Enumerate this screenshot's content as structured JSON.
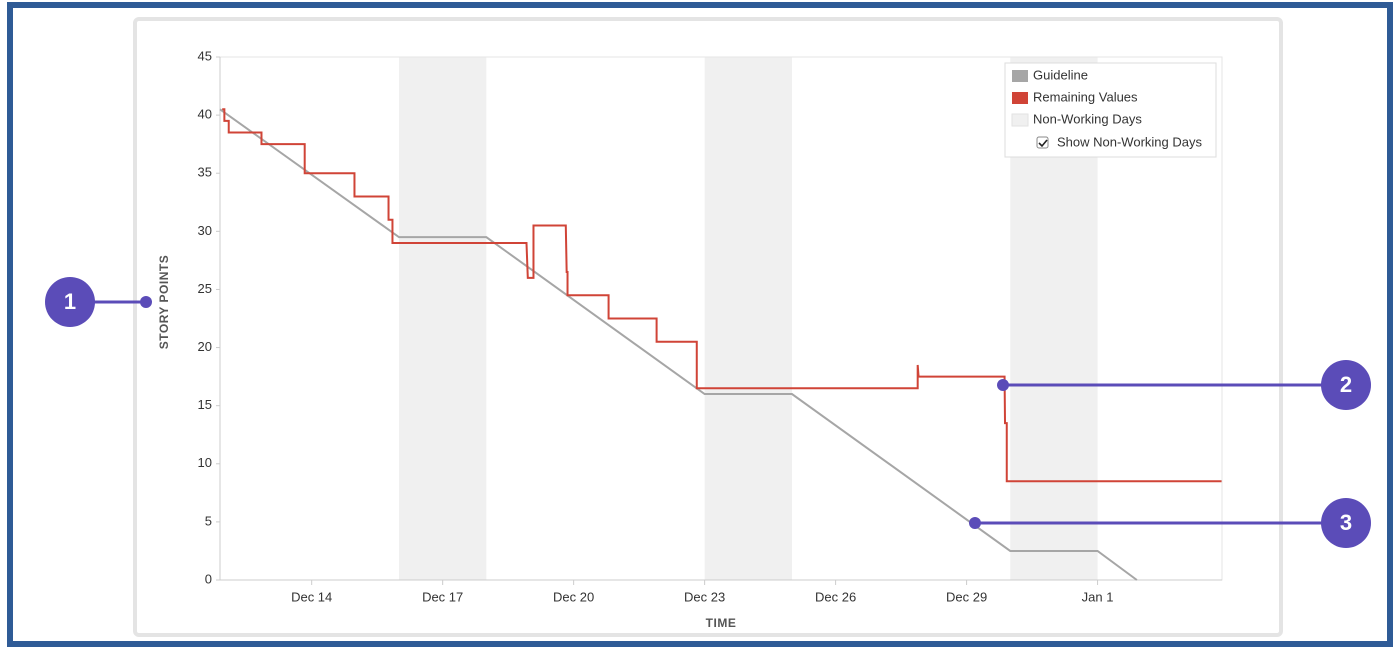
{
  "chart_data": {
    "type": "line",
    "xlabel": "TIME",
    "ylabel": "STORY POINTS",
    "xlim": [
      11.9,
      34.85
    ],
    "ylim": [
      0,
      45
    ],
    "xticks": [
      {
        "value": 14,
        "label": "Dec 14"
      },
      {
        "value": 17,
        "label": "Dec 17"
      },
      {
        "value": 20,
        "label": "Dec 20"
      },
      {
        "value": 23,
        "label": "Dec 23"
      },
      {
        "value": 26,
        "label": "Dec 26"
      },
      {
        "value": 29,
        "label": "Dec 29"
      },
      {
        "value": 32,
        "label": "Jan 1"
      }
    ],
    "yticks": [
      0,
      5,
      10,
      15,
      20,
      25,
      30,
      35,
      40,
      45
    ],
    "grid": false,
    "legend": "upper right",
    "non_working_days_name": "Non-Working Days",
    "non_working_days_color": "#f0f0f0",
    "non_working_days": [
      [
        16,
        18
      ],
      [
        23,
        25
      ],
      [
        30,
        32
      ]
    ],
    "show_non_working_days": true,
    "show_non_working_days_label": "Show Non-Working Days",
    "series": [
      {
        "name": "Guideline",
        "color": "#a6a6a6",
        "x": [
          11.9,
          16,
          18,
          23,
          25,
          30,
          32,
          32.9
        ],
        "values": [
          40.5,
          29.5,
          29.5,
          16,
          16,
          2.5,
          2.5,
          0
        ]
      },
      {
        "name": "Remaining Values",
        "color": "#d04437",
        "x": [
          11.95,
          12.0,
          12.0,
          12.1,
          12.1,
          12.85,
          12.85,
          13.84,
          13.84,
          14.98,
          14.98,
          15.76,
          15.76,
          15.85,
          15.85,
          18.92,
          18.95,
          19.02,
          19.08,
          19.08,
          19.82,
          19.84,
          19.86,
          19.86,
          20.8,
          20.8,
          21.9,
          21.9,
          22.82,
          22.82,
          27.88,
          27.88,
          27.9,
          29.87,
          29.88,
          29.92,
          29.92,
          34.84
        ],
        "values": [
          40.5,
          40.5,
          39.5,
          39.5,
          38.5,
          38.5,
          37.5,
          37.5,
          35,
          35,
          33,
          33,
          31,
          31,
          29,
          29,
          26,
          26,
          26,
          30.5,
          30.5,
          26.5,
          26.5,
          24.5,
          24.5,
          22.5,
          22.5,
          20.5,
          20.5,
          16.5,
          16.5,
          18.5,
          17.5,
          17.5,
          13.5,
          13.5,
          8.5,
          8.5
        ]
      }
    ],
    "annotations": [
      {
        "label": "1"
      },
      {
        "label": "2"
      },
      {
        "label": "3"
      }
    ]
  }
}
